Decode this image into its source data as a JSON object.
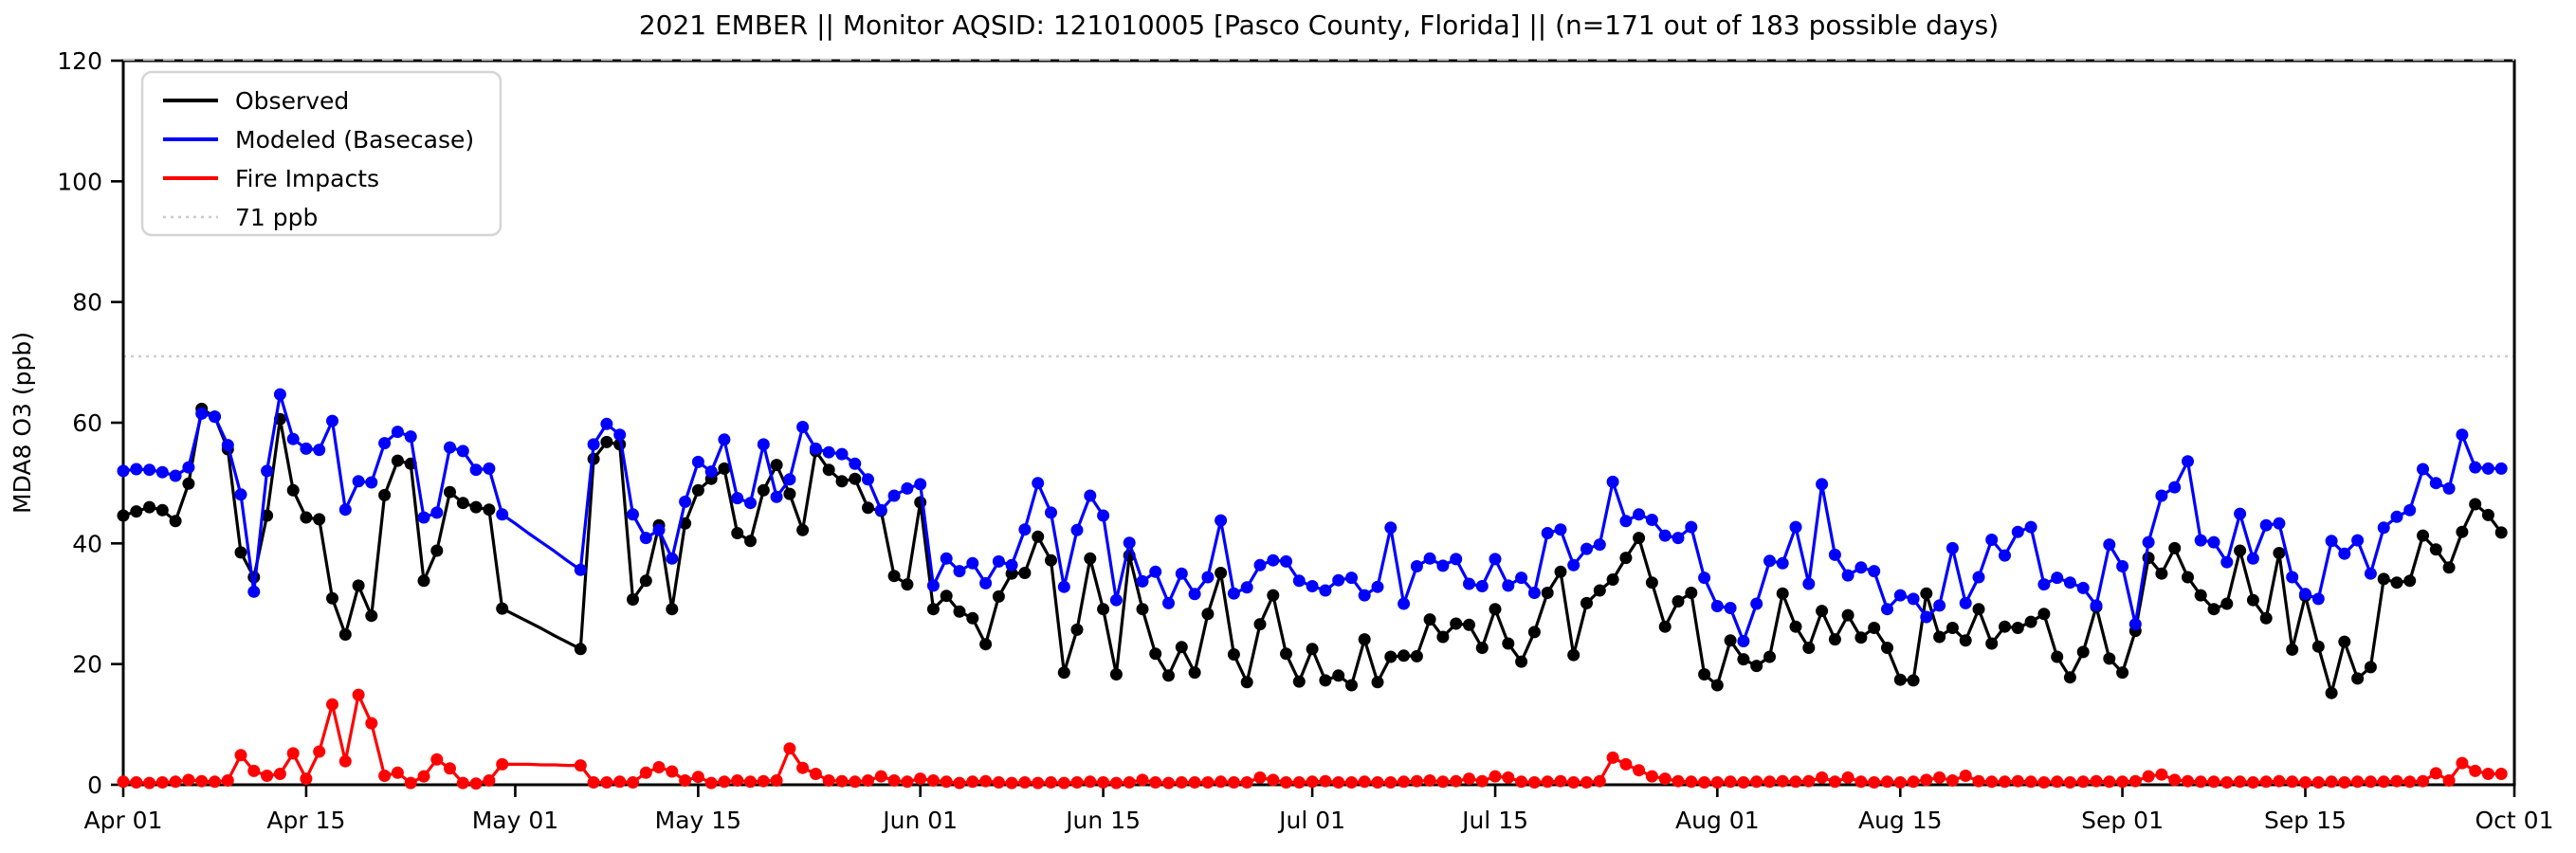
{
  "page": {
    "background": "#ffffff"
  },
  "title": "2021 EMBER || Monitor AQSID: 121010005 [Pasco County, Florida] || (n=171 out of 183 possible days)",
  "chart_data": {
    "type": "line",
    "title": "2021 EMBER || Monitor AQSID: 121010005 [Pasco County, Florida] || (n=171 out of 183 possible days)",
    "xlabel": "",
    "ylabel": "MDA8 O3 (ppb)",
    "ylim": [
      0,
      120
    ],
    "y_ticks": [
      0,
      20,
      40,
      60,
      80,
      100,
      120
    ],
    "x_total_days": 183,
    "x_ticks": [
      {
        "label": "Apr 01",
        "day": 0
      },
      {
        "label": "Apr 15",
        "day": 14
      },
      {
        "label": "May 01",
        "day": 30
      },
      {
        "label": "May 15",
        "day": 44
      },
      {
        "label": "Jun 01",
        "day": 61
      },
      {
        "label": "Jun 15",
        "day": 75
      },
      {
        "label": "Jul 01",
        "day": 91
      },
      {
        "label": "Jul 15",
        "day": 105
      },
      {
        "label": "Aug 01",
        "day": 122
      },
      {
        "label": "Aug 15",
        "day": 136
      },
      {
        "label": "Sep 01",
        "day": 153
      },
      {
        "label": "Sep 15",
        "day": 167
      },
      {
        "label": "Oct 01",
        "day": 183
      }
    ],
    "grid": false,
    "legend_position": "upper left",
    "threshold": {
      "label": "71 ppb",
      "value": 71,
      "color": "#cccccc",
      "style": "dotted"
    },
    "legend": [
      {
        "label": "Observed",
        "color": "#000000",
        "style": "solid"
      },
      {
        "label": "Modeled (Basecase)",
        "color": "#0000ff",
        "style": "solid"
      },
      {
        "label": "Fire Impacts",
        "color": "#ff0000",
        "style": "solid"
      },
      {
        "label": "71 ppb",
        "color": "#cccccc",
        "style": "dotted"
      }
    ],
    "missing_marker_days": [
      30,
      31,
      32,
      33,
      34
    ],
    "series": [
      {
        "name": "Observed",
        "color": "#000000",
        "values": [
          44.6,
          45.3,
          46,
          45.5,
          43.7,
          49.9,
          62.3,
          61,
          55.6,
          38.5,
          34.4,
          44.6,
          60.6,
          48.8,
          44.3,
          44,
          30.9,
          24.9,
          33,
          28,
          48,
          53.7,
          53.2,
          33.8,
          38.8,
          48.5,
          46.7,
          46,
          45.6,
          29.2,
          28.1,
          27,
          25.9,
          24.7,
          23.6,
          22.5,
          54,
          56.8,
          56.4,
          30.7,
          33.8,
          43,
          29.1,
          43.3,
          48.8,
          50.7,
          52.4,
          41.7,
          40.4,
          48.8,
          53,
          48.2,
          42.2,
          55.3,
          52.2,
          50.3,
          50.7,
          45.9,
          45.4,
          34.6,
          33.2,
          46.8,
          29.1,
          31.3,
          28.7,
          27.6,
          23.3,
          31.2,
          35,
          35.1,
          41.1,
          37.2,
          18.6,
          25.7,
          37.5,
          29.1,
          18.3,
          38,
          29.1,
          21.7,
          18.1,
          22.8,
          18.6,
          28.3,
          35.1,
          21.6,
          17,
          26.6,
          31.4,
          21.7,
          17.1,
          22.5,
          17.3,
          18.1,
          16.5,
          24.1,
          17,
          21.2,
          21.4,
          21.3,
          27.4,
          24.5,
          26.7,
          26.5,
          22.7,
          29.1,
          23.4,
          20.4,
          25.3,
          31.8,
          35.3,
          21.5,
          30.1,
          32.2,
          34,
          37.6,
          40.9,
          33.5,
          26.2,
          30.4,
          31.8,
          18.3,
          16.5,
          23.9,
          20.8,
          19.7,
          21.2,
          31.7,
          26.2,
          22.7,
          28.8,
          24.1,
          28.1,
          24.4,
          26,
          22.7,
          17.4,
          17.3,
          31.7,
          24.5,
          26,
          23.9,
          29.1,
          23.4,
          26.2,
          26,
          27,
          28.3,
          21.2,
          17.8,
          22,
          29.5,
          20.9,
          18.6,
          25.5,
          37.6,
          35,
          39.2,
          34.4,
          31.4,
          29.1,
          30,
          38.8,
          30.6,
          27.6,
          38.4,
          22.4,
          31.3,
          22.9,
          15.2,
          23.7,
          17.6,
          19.5,
          34.1,
          33.5,
          33.8,
          41.3,
          39,
          36,
          41.9,
          46.5,
          44.7,
          41.8
        ]
      },
      {
        "name": "Modeled (Basecase)",
        "color": "#0000ff",
        "values": [
          52,
          52.3,
          52.2,
          51.8,
          51.2,
          52.6,
          61.5,
          61,
          56.3,
          48.1,
          32,
          52,
          64.7,
          57.3,
          55.7,
          55.5,
          60.3,
          45.6,
          50.3,
          50.1,
          56.6,
          58.5,
          57.7,
          44.3,
          45.1,
          55.9,
          55.3,
          52.2,
          52.4,
          44.8,
          43.3,
          41.7,
          40.2,
          38.7,
          37.1,
          35.6,
          56.4,
          59.8,
          58,
          44.8,
          40.9,
          42.2,
          37.5,
          46.9,
          53.5,
          51.9,
          57.2,
          47.5,
          46.7,
          56.4,
          47.7,
          50.6,
          59.3,
          55.7,
          55.1,
          54.8,
          53.2,
          50.6,
          45.5,
          47.9,
          49.1,
          49.8,
          33,
          37.5,
          35.4,
          36.7,
          33.4,
          37,
          36.4,
          42.3,
          50,
          45.1,
          32.8,
          42.2,
          47.9,
          44.6,
          30.6,
          40.1,
          33.7,
          35.3,
          30.1,
          35,
          31.6,
          34.4,
          43.8,
          31.7,
          32.7,
          36.4,
          37.2,
          37,
          33.8,
          32.9,
          32.2,
          33.9,
          34.3,
          31.4,
          32.8,
          42.6,
          30,
          36.2,
          37.5,
          36.3,
          37.4,
          33.3,
          32.9,
          37.4,
          33,
          34.3,
          31.8,
          41.7,
          42.3,
          36.4,
          39.1,
          39.8,
          50.2,
          43.7,
          44.8,
          43.9,
          41.3,
          40.9,
          42.7,
          34.3,
          29.6,
          29.3,
          23.8,
          30,
          37.1,
          36.7,
          42.7,
          33.3,
          49.8,
          38.1,
          34.7,
          36,
          35.4,
          29.1,
          31.4,
          30.8,
          27.8,
          29.7,
          39.2,
          30.1,
          34.4,
          40.6,
          38,
          41.9,
          42.7,
          33.2,
          34.3,
          33.5,
          32.6,
          29.7,
          39.8,
          36.2,
          26.6,
          40.2,
          47.9,
          49.3,
          53.6,
          40.5,
          40.2,
          36.9,
          44.9,
          37.5,
          43,
          43.3,
          34.4,
          31.6,
          30.8,
          40.4,
          38.3,
          40.5,
          35,
          42.6,
          44.4,
          45.5,
          52.3,
          50,
          49.1,
          58,
          52.6,
          52.4,
          52.4
        ]
      },
      {
        "name": "Fire Impacts",
        "color": "#ff0000",
        "values": [
          0.5,
          0.4,
          0.3,
          0.4,
          0.5,
          0.8,
          0.6,
          0.5,
          0.7,
          4.9,
          2.3,
          1.5,
          1.8,
          5.2,
          1,
          5.5,
          13.3,
          3.9,
          14.9,
          10.2,
          1.5,
          2,
          0.3,
          1.4,
          4.2,
          2.7,
          0.3,
          0.2,
          0.7,
          3.4,
          3.4,
          3.4,
          3.3,
          3.3,
          3.2,
          3.2,
          0.4,
          0.4,
          0.5,
          0.4,
          2,
          2.9,
          2.2,
          0.7,
          1.3,
          0.3,
          0.5,
          0.7,
          0.5,
          0.6,
          0.7,
          6,
          2.8,
          1.8,
          0.7,
          0.6,
          0.5,
          0.7,
          1.4,
          0.7,
          0.5,
          1,
          0.7,
          0.5,
          0.3,
          0.5,
          0.6,
          0.4,
          0.3,
          0.4,
          0.3,
          0.4,
          0.3,
          0.4,
          0.5,
          0.4,
          0.3,
          0.4,
          0.8,
          0.4,
          0.3,
          0.4,
          0.4,
          0.4,
          0.5,
          0.4,
          0.4,
          1.2,
          0.8,
          0.4,
          0.4,
          0.5,
          0.6,
          0.4,
          0.4,
          0.5,
          0.4,
          0.4,
          0.5,
          0.6,
          0.7,
          0.5,
          0.6,
          1,
          0.6,
          1.4,
          1.2,
          0.5,
          0.4,
          0.5,
          0.6,
          0.4,
          0.4,
          0.6,
          4.5,
          3.4,
          2.4,
          1.4,
          1,
          0.6,
          0.5,
          0.4,
          0.4,
          0.5,
          0.4,
          0.5,
          0.5,
          0.6,
          0.5,
          0.6,
          1.2,
          0.5,
          1.2,
          0.5,
          0.4,
          0.5,
          0.4,
          0.5,
          0.8,
          1.2,
          0.7,
          1.5,
          0.6,
          0.5,
          0.5,
          0.6,
          0.5,
          0.4,
          0.5,
          0.4,
          0.5,
          0.6,
          0.5,
          0.5,
          0.6,
          1.4,
          1.7,
          0.8,
          0.6,
          0.5,
          0.5,
          0.4,
          0.5,
          0.4,
          0.5,
          0.6,
          0.5,
          0.4,
          0.4,
          0.5,
          0.4,
          0.5,
          0.5,
          0.5,
          0.6,
          0.5,
          0.6,
          1.9,
          0.7,
          3.6,
          2.3,
          1.8,
          1.8
        ]
      }
    ]
  },
  "layout_colors": {
    "axis": "#000000",
    "top_dashes": "#c0c0c0",
    "legend_border": "#d5d5d5"
  }
}
